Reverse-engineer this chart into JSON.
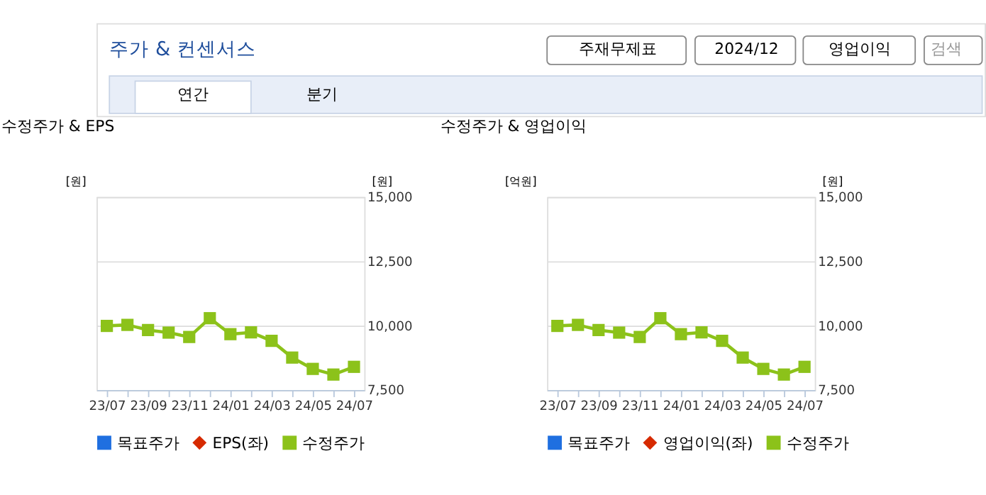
{
  "chart_data": [
    {
      "type": "other",
      "annotations": [
        "주가 & 컨센서스",
        "주재무제표",
        "2024/12",
        "영업이익",
        "검색",
        "연간",
        "분기"
      ]
    },
    {
      "type": "line",
      "title": "수정주가 & EPS",
      "ylabel": "[원]",
      "y2label": "[원]",
      "categories": [
        "23/07",
        null,
        "23/09",
        null,
        "23/11",
        null,
        "24/01",
        null,
        "24/03",
        null,
        "24/05",
        null,
        "24/07"
      ],
      "series": [
        {
          "name": "목표주가",
          "color": "#1f6fe0",
          "marker": "square",
          "values": [
            null,
            null,
            null,
            null,
            null,
            null,
            null,
            null,
            null,
            null,
            null,
            null,
            null
          ]
        },
        {
          "name": "EPS(좌)",
          "color": "#d62a00",
          "marker": "diamond",
          "values": [
            null,
            null,
            null,
            null,
            null,
            null,
            null,
            null,
            null,
            null,
            null,
            null,
            null
          ]
        },
        {
          "name": "수정주가",
          "color": "#8cc21a",
          "marker": "square",
          "axis": "y2",
          "values": [
            9990,
            10030,
            9830,
            9730,
            9560,
            10290,
            9670,
            9740,
            9410,
            8760,
            8320,
            8100,
            8400
          ]
        }
      ],
      "y2lim": [
        7500,
        15000
      ],
      "y2ticks": [
        {
          "value": 7500,
          "label": "7,500"
        },
        {
          "value": 10000,
          "label": "10,000"
        },
        {
          "value": 12500,
          "label": "12,500"
        },
        {
          "value": 15000,
          "label": "15,000"
        }
      ],
      "grid": true,
      "legend": "bottom",
      "line_style": "solid"
    },
    {
      "type": "line",
      "title": "수정주가 & 영업이익",
      "ylabel": "[억원]",
      "y2label": "[원]",
      "categories": [
        "23/07",
        null,
        "23/09",
        null,
        "23/11",
        null,
        "24/01",
        null,
        "24/03",
        null,
        "24/05",
        null,
        "24/07"
      ],
      "series": [
        {
          "name": "목표주가",
          "color": "#1f6fe0",
          "marker": "square",
          "values": [
            null,
            null,
            null,
            null,
            null,
            null,
            null,
            null,
            null,
            null,
            null,
            null,
            null
          ]
        },
        {
          "name": "영업이익(좌)",
          "color": "#d62a00",
          "marker": "diamond",
          "values": [
            null,
            null,
            null,
            null,
            null,
            null,
            null,
            null,
            null,
            null,
            null,
            null,
            null
          ]
        },
        {
          "name": "수정주가",
          "color": "#8cc21a",
          "marker": "square",
          "axis": "y2",
          "values": [
            9990,
            10030,
            9830,
            9730,
            9560,
            10290,
            9670,
            9740,
            9410,
            8760,
            8320,
            8100,
            8400
          ]
        }
      ],
      "y2lim": [
        7500,
        15000
      ],
      "y2ticks": [
        {
          "value": 7500,
          "label": "7,500"
        },
        {
          "value": 10000,
          "label": "10,000"
        },
        {
          "value": 12500,
          "label": "12,500"
        },
        {
          "value": 15000,
          "label": "15,000"
        }
      ],
      "grid": true,
      "legend": "bottom",
      "line_style": "solid"
    }
  ]
}
